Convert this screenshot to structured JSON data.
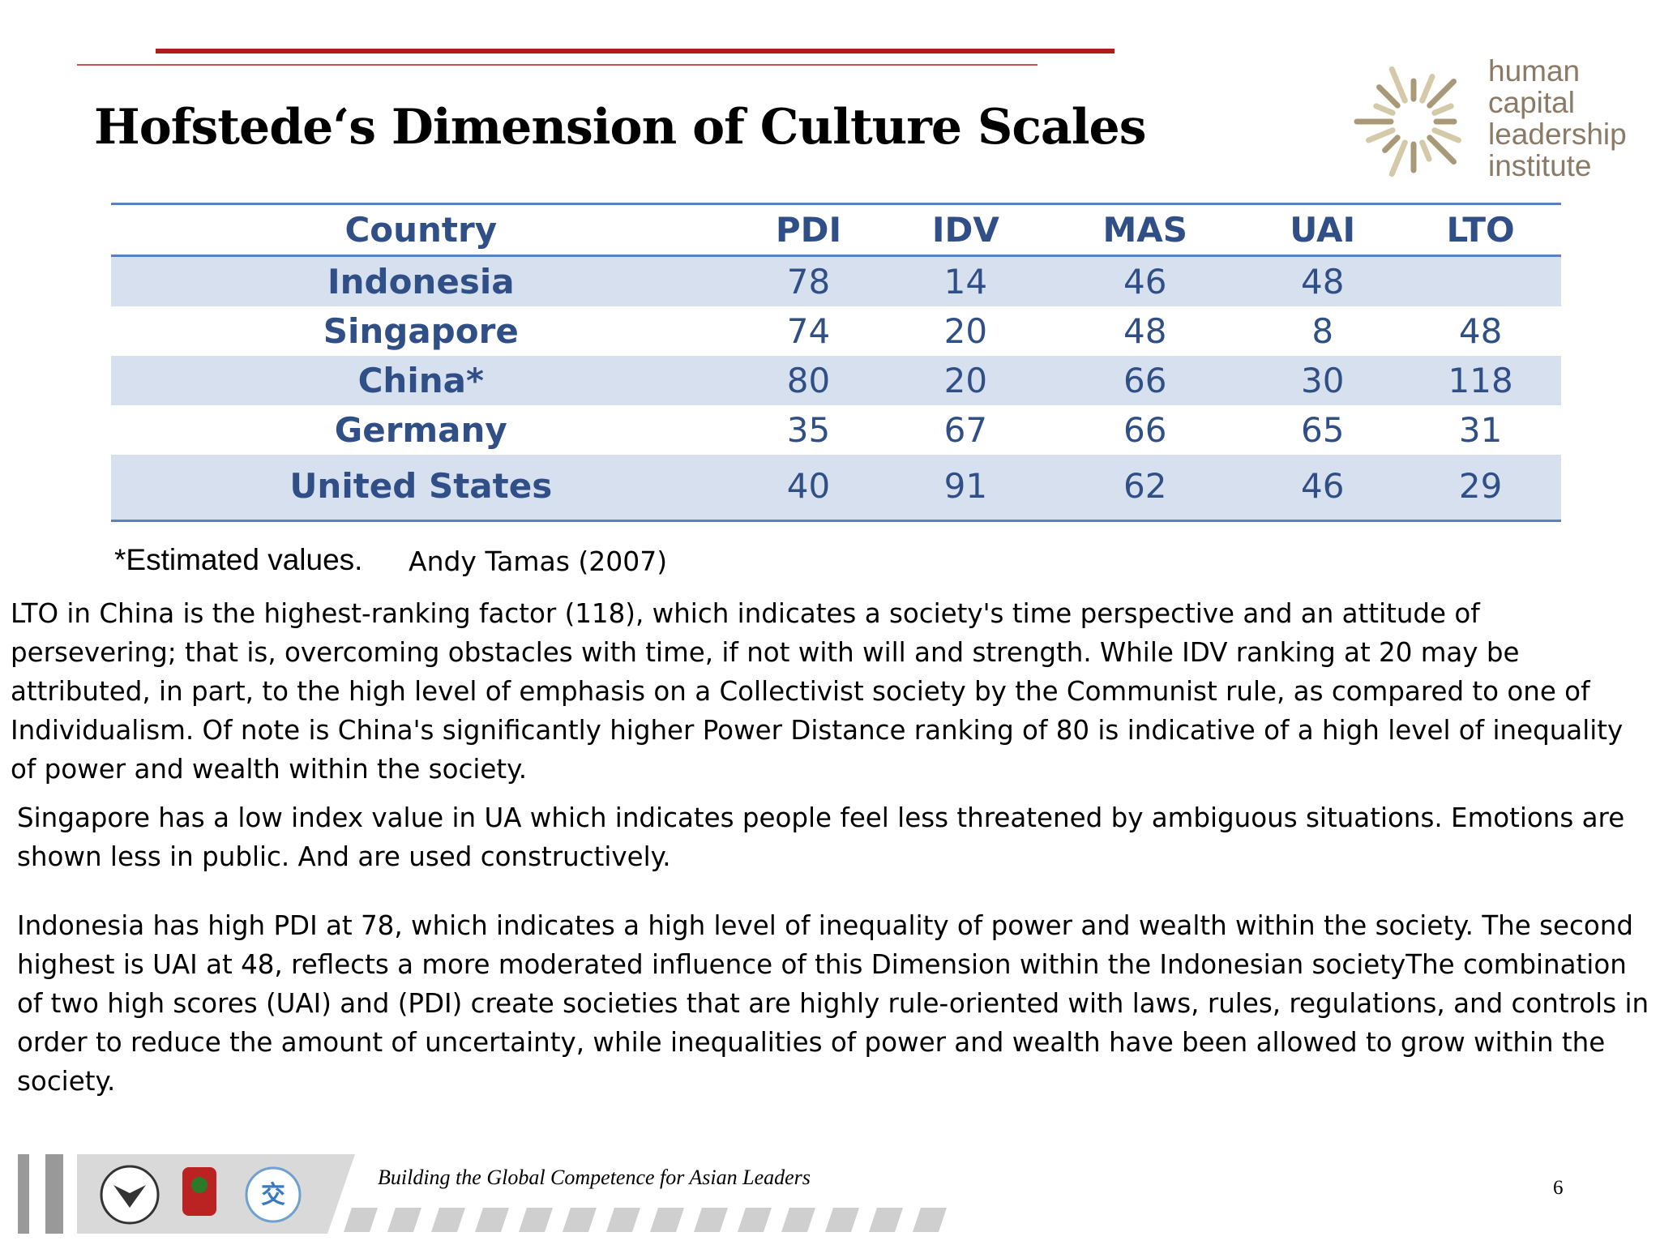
{
  "header": {
    "title": "Hofstede‘s Dimension of Culture Scales"
  },
  "logo": {
    "lines": [
      "human",
      "capital",
      "leadership",
      "institute"
    ]
  },
  "table": {
    "columns": [
      "Country",
      "PDI",
      "IDV",
      "MAS",
      "UAI",
      "LTO"
    ],
    "rows": [
      [
        "Indonesia",
        78,
        14,
        46,
        48,
        null
      ],
      [
        "Singapore",
        74,
        20,
        48,
        8,
        48
      ],
      [
        "China*",
        80,
        20,
        66,
        30,
        118
      ],
      [
        "Germany",
        35,
        67,
        66,
        65,
        31
      ],
      [
        "United States",
        40,
        91,
        62,
        46,
        29
      ]
    ]
  },
  "footnote": "*Estimated values.",
  "citation": "Andy Tamas (2007)",
  "paragraphs": [
    "LTO in China is the highest-ranking factor (118), which indicates a society's time perspective and an attitude of persevering; that is, overcoming obstacles with time, if not with will and strength. While IDV ranking at 20 may be attributed, in part, to the high level of emphasis on a Collectivist society by the Communist rule, as compared to one of Individualism. Of note is China's significantly higher Power Distance ranking of 80 is indicative of a high level of inequality of power and wealth within the society.",
    "Singapore has a low index value in UA which indicates people feel less threatened by ambiguous situations. Emotions are shown less in public. And are used constructively.",
    "Indonesia has high PDI at 78, which indicates a high level of inequality of power and wealth within the society. The second highest is UAI at 48, reflects a more moderated influence of this Dimension within the Indonesian societyThe combination of two high scores (UAI) and (PDI) create societies that are highly rule-oriented with laws, rules, regulations, and controls in order to reduce the amount of uncertainty, while inequalities of power and wealth have been allowed to grow within the society."
  ],
  "footer": {
    "tagline": "Building the Global Competence for Asian Leaders",
    "page": 6
  }
}
